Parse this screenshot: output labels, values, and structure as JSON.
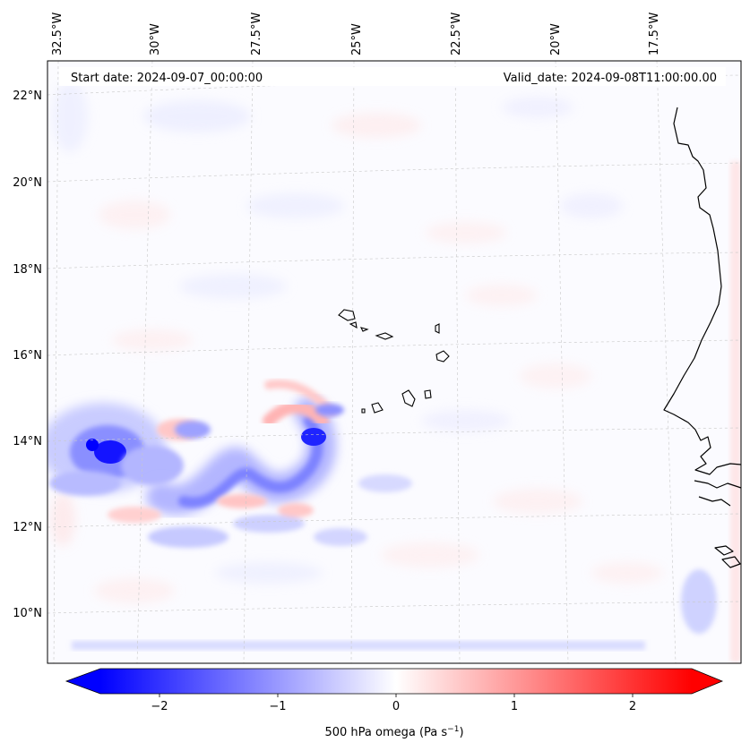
{
  "map": {
    "lon_labels": [
      "32.5°W",
      "30°W",
      "27.5°W",
      "25°W",
      "22.5°W",
      "20°W",
      "17.5°W"
    ],
    "lat_labels": [
      "22°N",
      "20°N",
      "18°N",
      "16°N",
      "14°N",
      "12°N",
      "10°N"
    ],
    "start_label": "Start date: 2024-09-07_00:00:00",
    "valid_label": "Valid_date: 2024-09-08T11:00:00.00",
    "gridlines": true
  },
  "colorbar": {
    "min": -2.5,
    "max": 2.5,
    "ticks": [
      -2,
      -1,
      0,
      1,
      2
    ],
    "tick_labels": [
      "−2",
      "−1",
      "0",
      "1",
      "2"
    ],
    "label": "500 hPa omega (Pa s",
    "label_exponent": "−1",
    "label_suffix": ")",
    "low_color": "#0000ff",
    "high_color": "#ff0000",
    "mid_color": "#ffffff"
  }
}
